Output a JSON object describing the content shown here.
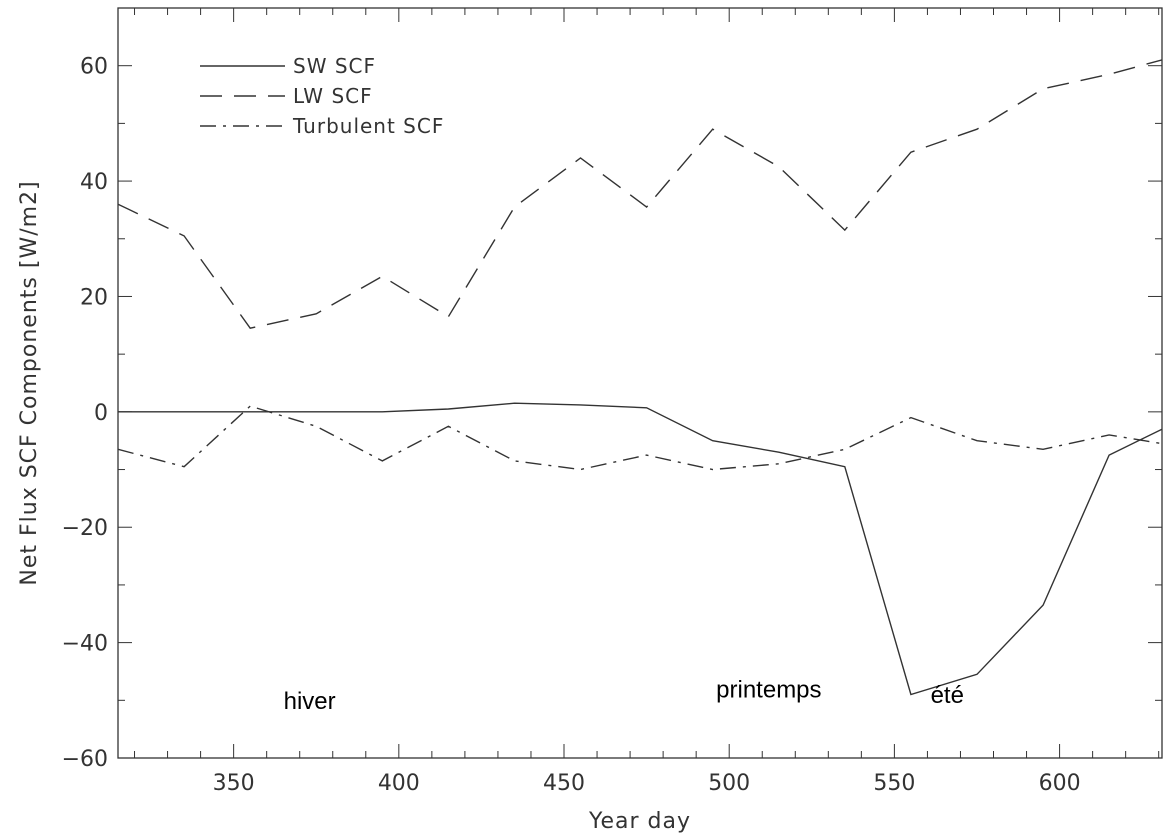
{
  "chart_data": {
    "type": "line",
    "title": "",
    "xlabel": "Year day",
    "ylabel": "Net Flux SCF Components [W/m2]",
    "xlim": [
      315,
      631
    ],
    "ylim": [
      -60,
      70
    ],
    "x_ticks": [
      350,
      400,
      450,
      500,
      550,
      600
    ],
    "y_ticks": [
      -60,
      -40,
      -20,
      0,
      20,
      40,
      60
    ],
    "grid": false,
    "legend_position": "top-left",
    "x": [
      315,
      335,
      355,
      375,
      395,
      415,
      435,
      455,
      475,
      495,
      515,
      535,
      555,
      575,
      595,
      615,
      631
    ],
    "series": [
      {
        "name": "SW SCF",
        "style": "solid",
        "values": [
          0,
          0,
          0,
          0,
          0,
          0.5,
          1.5,
          1.2,
          0.7,
          -5,
          -7,
          -9.5,
          -49,
          -45.5,
          -33.5,
          -7.5,
          -3
        ]
      },
      {
        "name": "LW SCF",
        "style": "dashed",
        "values": [
          36,
          30.5,
          14.5,
          17,
          23.5,
          16.5,
          35.5,
          44,
          35.5,
          49,
          42.5,
          31.5,
          45,
          49,
          56,
          58.5,
          61
        ]
      },
      {
        "name": "Turbulent SCF",
        "style": "dashdot",
        "values": [
          -6.5,
          -9.5,
          1,
          -2.5,
          -8.5,
          -2.5,
          -8.5,
          -10,
          -7.5,
          -10,
          -9,
          -6.5,
          -1,
          -5,
          -6.5,
          -4,
          -5.5
        ]
      }
    ],
    "annotations": [
      {
        "text": "hiver",
        "x": 373,
        "y": -51.5
      },
      {
        "text": "printemps",
        "x": 512,
        "y": -49.5
      },
      {
        "text": "été",
        "x": 566,
        "y": -50.5
      }
    ]
  }
}
